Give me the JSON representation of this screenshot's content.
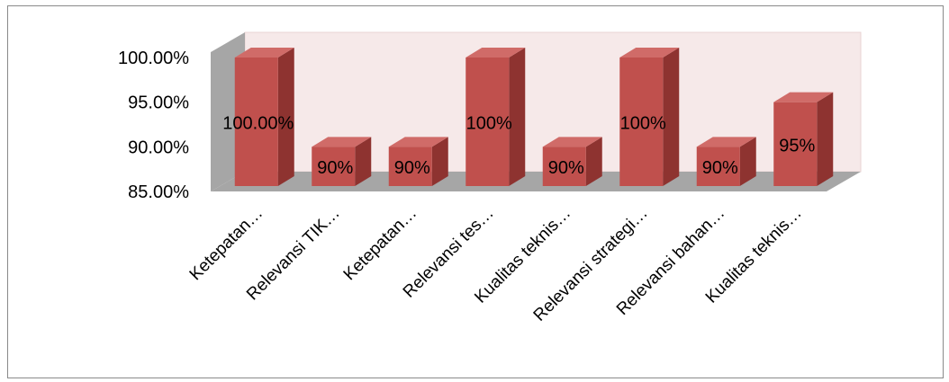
{
  "chart_data": {
    "type": "bar",
    "style": "3d-column",
    "categories": [
      "Ketepatan…",
      "Relevansi TIK…",
      "Ketepatan…",
      "Relevansi tes…",
      "Kualitas teknis…",
      "Relevansi strategi…",
      "Relevansi bahan…",
      "Kualitas teknis…"
    ],
    "values": [
      100,
      90,
      90,
      100,
      90,
      100,
      90,
      95
    ],
    "data_labels": [
      "100.00%",
      "90%",
      "90%",
      "100%",
      "90%",
      "100%",
      "90%",
      "95%"
    ],
    "yticks": [
      "85.00%",
      "90.00%",
      "95.00%",
      "100.00%"
    ],
    "ytick_values": [
      85,
      90,
      95,
      100
    ],
    "ylim": [
      85,
      100
    ],
    "title": "",
    "xlabel": "",
    "ylabel": "",
    "legend": "none",
    "grid": false,
    "colors": {
      "bar_front": "#c0504d",
      "bar_side": "#8e3330",
      "bar_top": "#d06b68",
      "back_wall": "#f6e9e9",
      "side_wall": "#a6a6a6",
      "floor": "#a6a6a6"
    }
  }
}
